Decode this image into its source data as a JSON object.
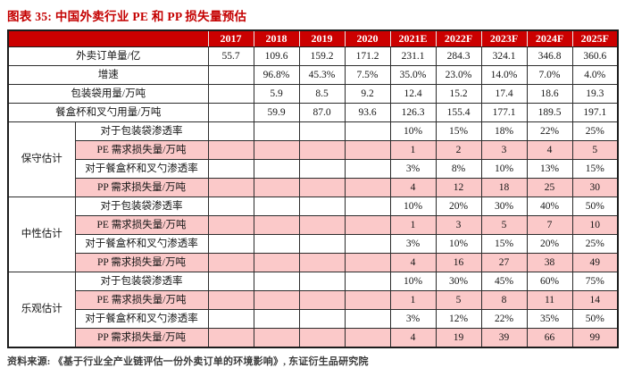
{
  "title": "图表 35:  中国外卖行业 PE 和 PP 损失量预估",
  "source": "资料来源: 《基于行业全产业链评估一份外卖订单的环境影响》, 东证衍生品研究院",
  "colors": {
    "header_bg": "#cb0000",
    "title_red": "#c40000",
    "pink_row": "#fbc9c9",
    "border": "#2c2c2c"
  },
  "table": {
    "years": [
      "2017",
      "2018",
      "2019",
      "2020",
      "2021E",
      "2022F",
      "2023F",
      "2024F",
      "2025F"
    ],
    "summary_rows": [
      {
        "label": "外卖订单量/亿",
        "values": [
          "55.7",
          "109.6",
          "159.2",
          "171.2",
          "231.1",
          "284.3",
          "324.1",
          "346.8",
          "360.6"
        ]
      },
      {
        "label": "增速",
        "values": [
          "",
          "96.8%",
          "45.3%",
          "7.5%",
          "35.0%",
          "23.0%",
          "14.0%",
          "7.0%",
          "4.0%"
        ]
      },
      {
        "label": "包装袋用量/万吨",
        "values": [
          "",
          "5.9",
          "8.5",
          "9.2",
          "12.4",
          "15.2",
          "17.4",
          "18.6",
          "19.3"
        ]
      },
      {
        "label": "餐盒杯和叉勺用量/万吨",
        "values": [
          "",
          "59.9",
          "87.0",
          "93.6",
          "126.3",
          "155.4",
          "177.1",
          "189.5",
          "197.1"
        ]
      }
    ],
    "sections": [
      {
        "name": "保守估计",
        "rows": [
          {
            "label": "对于包装袋渗透率",
            "pink": false,
            "values": [
              "",
              "",
              "",
              "",
              "10%",
              "15%",
              "18%",
              "22%",
              "25%"
            ]
          },
          {
            "label": "PE 需求损失量/万吨",
            "pink": true,
            "values": [
              "",
              "",
              "",
              "",
              "1",
              "2",
              "3",
              "4",
              "5"
            ]
          },
          {
            "label": "对于餐盒杯和叉勺渗透率",
            "pink": false,
            "values": [
              "",
              "",
              "",
              "",
              "3%",
              "8%",
              "10%",
              "13%",
              "15%"
            ]
          },
          {
            "label": "PP 需求损失量/万吨",
            "pink": true,
            "values": [
              "",
              "",
              "",
              "",
              "4",
              "12",
              "18",
              "25",
              "30"
            ]
          }
        ]
      },
      {
        "name": "中性估计",
        "rows": [
          {
            "label": "对于包装袋渗透率",
            "pink": false,
            "values": [
              "",
              "",
              "",
              "",
              "10%",
              "20%",
              "30%",
              "40%",
              "50%"
            ]
          },
          {
            "label": "PE 需求损失量/万吨",
            "pink": true,
            "values": [
              "",
              "",
              "",
              "",
              "1",
              "3",
              "5",
              "7",
              "10"
            ]
          },
          {
            "label": "对于餐盒杯和叉勺渗透率",
            "pink": false,
            "values": [
              "",
              "",
              "",
              "",
              "3%",
              "10%",
              "15%",
              "20%",
              "25%"
            ]
          },
          {
            "label": "PP 需求损失量/万吨",
            "pink": true,
            "values": [
              "",
              "",
              "",
              "",
              "4",
              "16",
              "27",
              "38",
              "49"
            ]
          }
        ]
      },
      {
        "name": "乐观估计",
        "rows": [
          {
            "label": "对于包装袋渗透率",
            "pink": false,
            "values": [
              "",
              "",
              "",
              "",
              "10%",
              "30%",
              "45%",
              "60%",
              "75%"
            ]
          },
          {
            "label": "PE 需求损失量/万吨",
            "pink": true,
            "values": [
              "",
              "",
              "",
              "",
              "1",
              "5",
              "8",
              "11",
              "14"
            ]
          },
          {
            "label": "对于餐盒杯和叉勺渗透率",
            "pink": false,
            "values": [
              "",
              "",
              "",
              "",
              "3%",
              "12%",
              "22%",
              "35%",
              "50%"
            ]
          },
          {
            "label": "PP 需求损失量/万吨",
            "pink": true,
            "values": [
              "",
              "",
              "",
              "",
              "4",
              "19",
              "39",
              "66",
              "99"
            ]
          }
        ]
      }
    ]
  }
}
